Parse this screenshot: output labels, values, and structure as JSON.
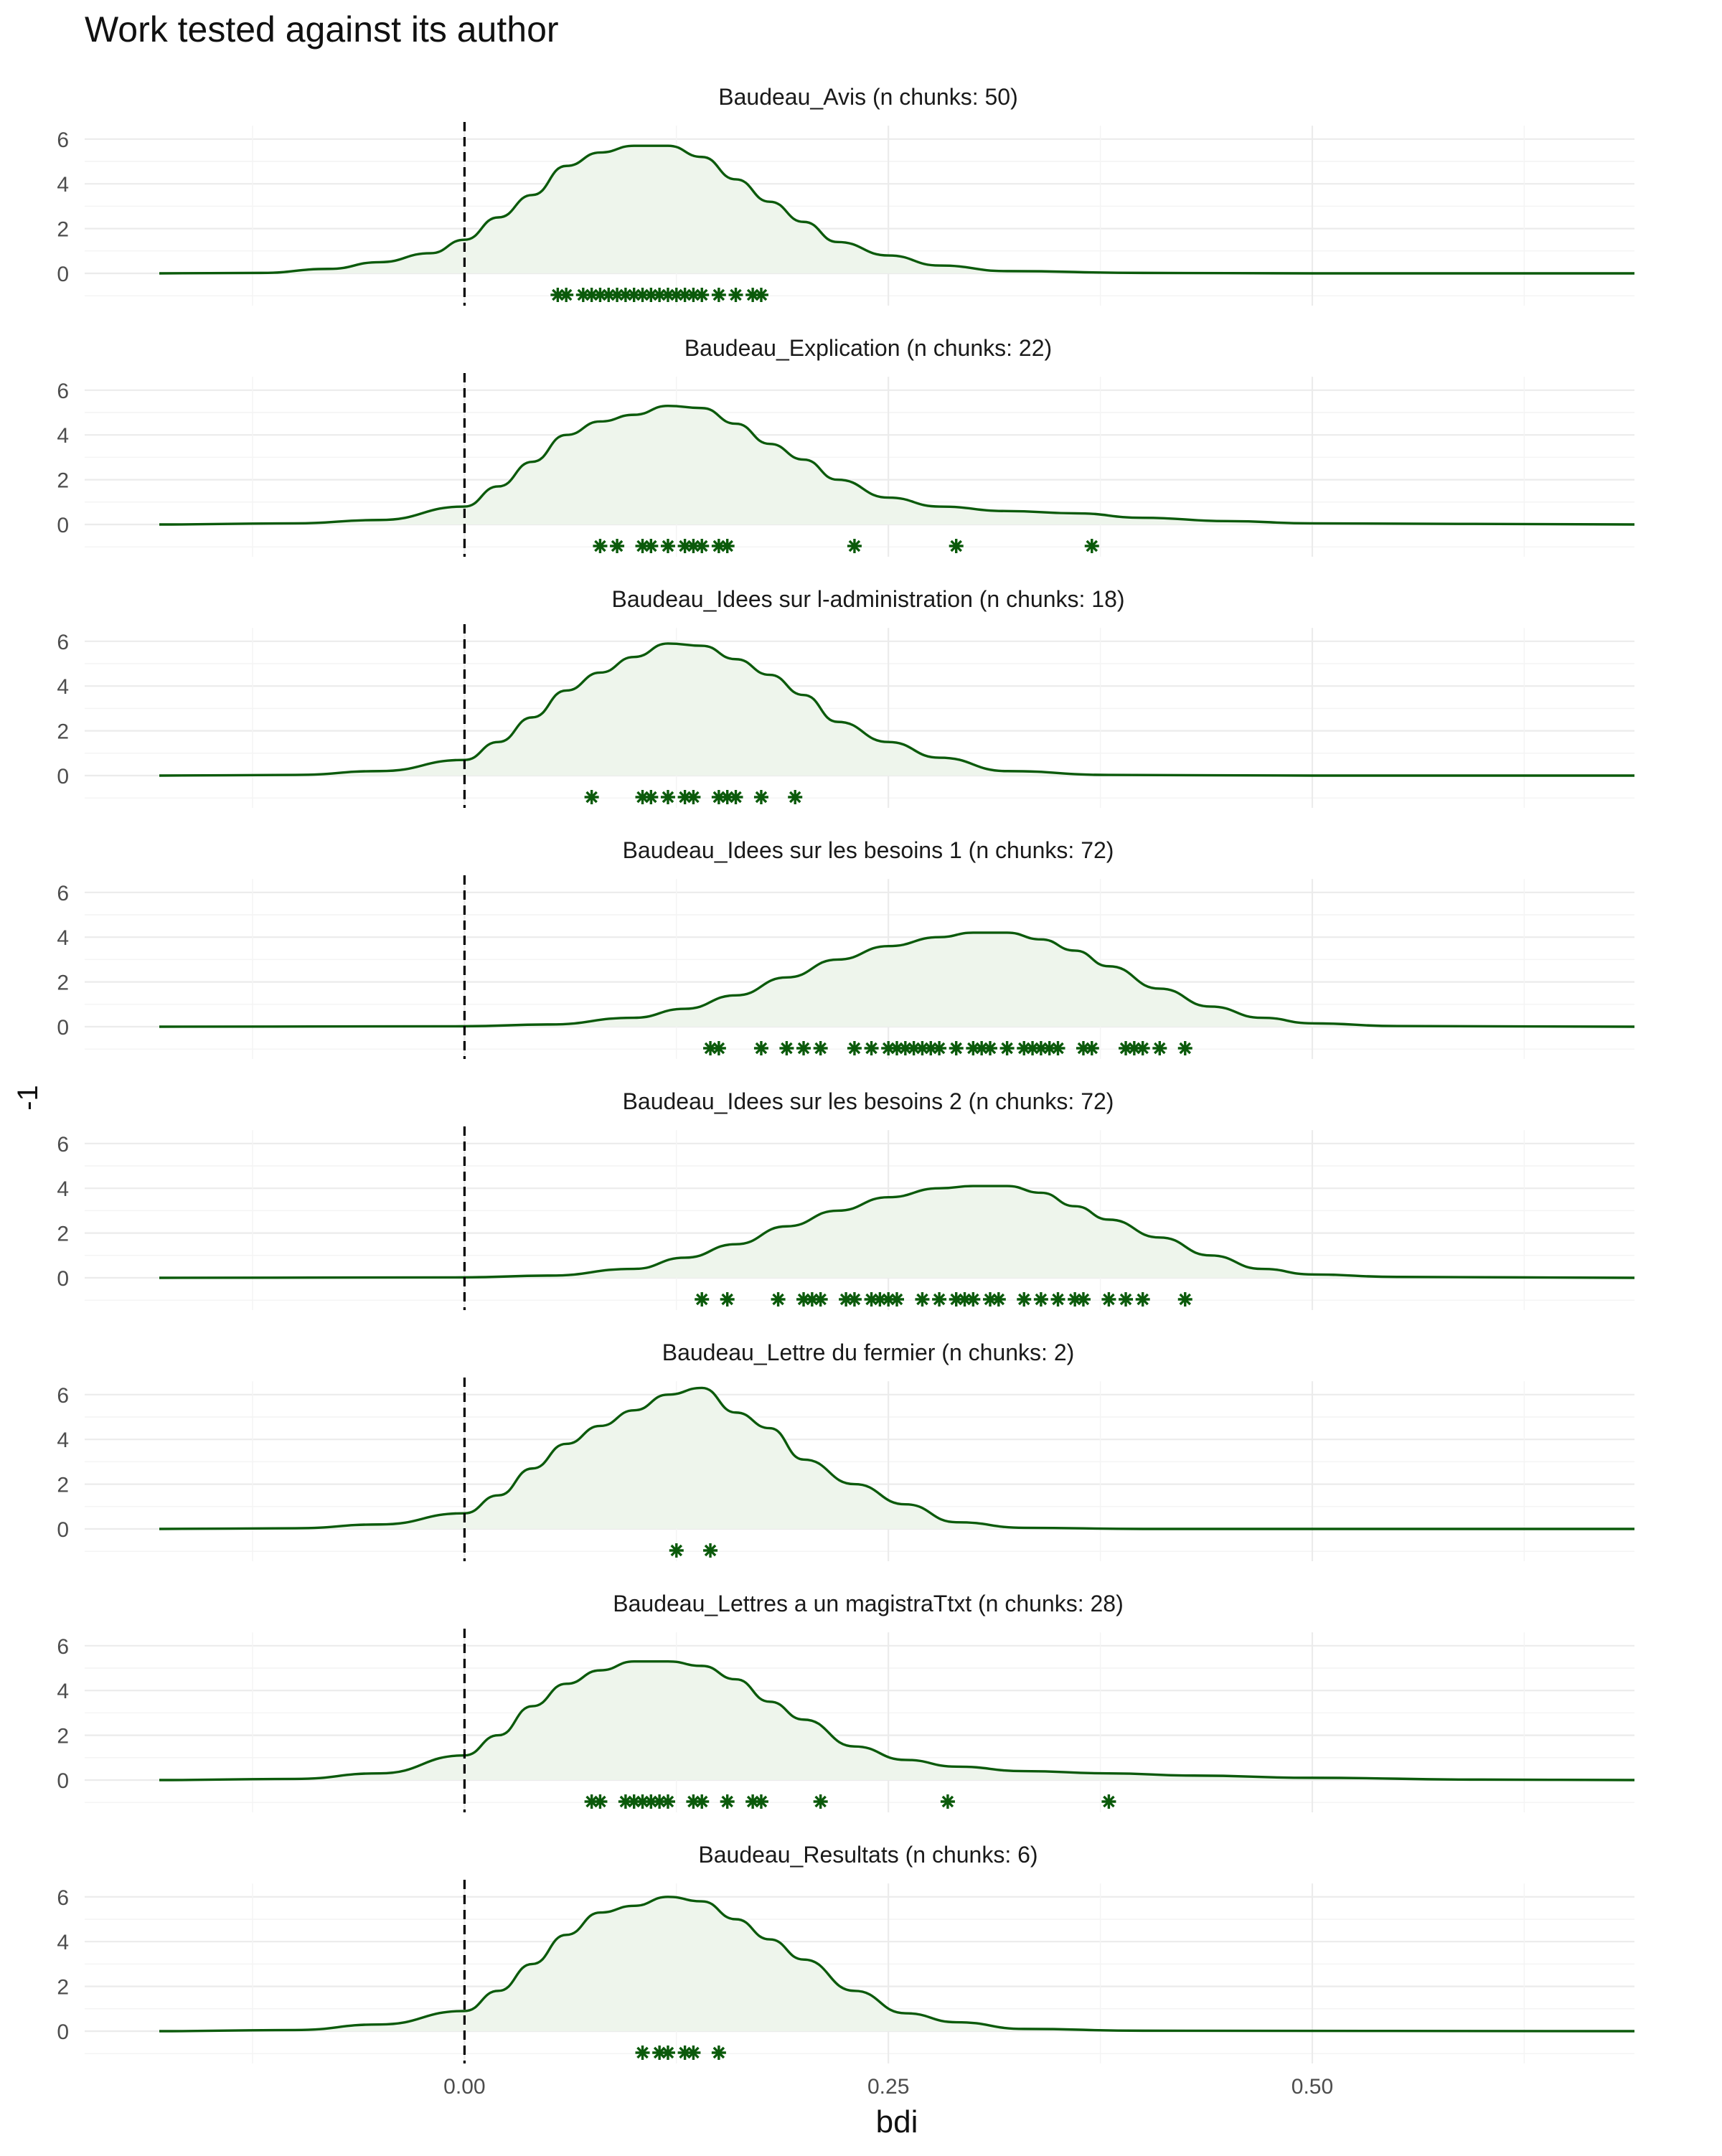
{
  "title": "Work tested against its author",
  "chart_data": {
    "type": "density",
    "title": "Work tested against its author",
    "xlabel": "bdi",
    "ylabel": "-1",
    "x_ticks": [
      0.0,
      0.25,
      0.5
    ],
    "x_tick_labels": [
      "0.00",
      "0.25",
      "0.50"
    ],
    "y_ticks": [
      0,
      2,
      4,
      6
    ],
    "y_tick_labels": [
      "0",
      "2",
      "4",
      "6"
    ],
    "reference_line_x": 0.0,
    "line_color": "#0b5a0b",
    "fill_color": "#eef5ec",
    "point_marker": "asterisk",
    "grid": true,
    "panels": [
      {
        "label": "Baudeau_Avis  (n chunks: 50)",
        "density": [
          [
            -0.18,
            0
          ],
          [
            -0.12,
            0.02
          ],
          [
            -0.08,
            0.2
          ],
          [
            -0.05,
            0.5
          ],
          [
            -0.02,
            0.9
          ],
          [
            0.0,
            1.5
          ],
          [
            0.02,
            2.5
          ],
          [
            0.04,
            3.5
          ],
          [
            0.06,
            4.8
          ],
          [
            0.08,
            5.4
          ],
          [
            0.1,
            5.7
          ],
          [
            0.12,
            5.7
          ],
          [
            0.14,
            5.2
          ],
          [
            0.16,
            4.2
          ],
          [
            0.18,
            3.2
          ],
          [
            0.2,
            2.3
          ],
          [
            0.22,
            1.4
          ],
          [
            0.25,
            0.8
          ],
          [
            0.28,
            0.35
          ],
          [
            0.32,
            0.1
          ],
          [
            0.4,
            0.02
          ],
          [
            0.5,
            0
          ],
          [
            0.69,
            0
          ]
        ],
        "points": [
          0.055,
          0.06,
          0.07,
          0.075,
          0.08,
          0.085,
          0.09,
          0.095,
          0.1,
          0.105,
          0.11,
          0.115,
          0.12,
          0.125,
          0.13,
          0.135,
          0.14,
          0.15,
          0.16,
          0.17,
          0.175
        ]
      },
      {
        "label": "Baudeau_Explication (n chunks: 22)",
        "density": [
          [
            -0.18,
            0
          ],
          [
            -0.1,
            0.05
          ],
          [
            -0.05,
            0.2
          ],
          [
            0.0,
            0.8
          ],
          [
            0.02,
            1.7
          ],
          [
            0.04,
            2.8
          ],
          [
            0.06,
            4.0
          ],
          [
            0.08,
            4.6
          ],
          [
            0.1,
            4.9
          ],
          [
            0.12,
            5.3
          ],
          [
            0.14,
            5.2
          ],
          [
            0.16,
            4.5
          ],
          [
            0.18,
            3.6
          ],
          [
            0.2,
            2.9
          ],
          [
            0.22,
            2.0
          ],
          [
            0.25,
            1.2
          ],
          [
            0.28,
            0.8
          ],
          [
            0.32,
            0.6
          ],
          [
            0.36,
            0.5
          ],
          [
            0.4,
            0.3
          ],
          [
            0.45,
            0.15
          ],
          [
            0.5,
            0.05
          ],
          [
            0.69,
            0
          ]
        ],
        "points": [
          0.08,
          0.09,
          0.105,
          0.11,
          0.12,
          0.13,
          0.135,
          0.14,
          0.15,
          0.155,
          0.23,
          0.29,
          0.37
        ]
      },
      {
        "label": "Baudeau_Idees sur l-administration (n chunks: 18)",
        "density": [
          [
            -0.18,
            0
          ],
          [
            -0.1,
            0.03
          ],
          [
            -0.05,
            0.2
          ],
          [
            0.0,
            0.7
          ],
          [
            0.02,
            1.5
          ],
          [
            0.04,
            2.6
          ],
          [
            0.06,
            3.8
          ],
          [
            0.08,
            4.6
          ],
          [
            0.1,
            5.3
          ],
          [
            0.12,
            5.9
          ],
          [
            0.14,
            5.8
          ],
          [
            0.16,
            5.2
          ],
          [
            0.18,
            4.5
          ],
          [
            0.2,
            3.6
          ],
          [
            0.22,
            2.4
          ],
          [
            0.25,
            1.5
          ],
          [
            0.28,
            0.8
          ],
          [
            0.32,
            0.2
          ],
          [
            0.38,
            0.03
          ],
          [
            0.5,
            0
          ],
          [
            0.69,
            0
          ]
        ],
        "points": [
          0.075,
          0.105,
          0.11,
          0.12,
          0.13,
          0.135,
          0.15,
          0.155,
          0.16,
          0.175,
          0.195
        ]
      },
      {
        "label": "Baudeau_Idees sur les besoins 1 (n chunks: 72)",
        "density": [
          [
            -0.18,
            0
          ],
          [
            0.0,
            0.02
          ],
          [
            0.05,
            0.1
          ],
          [
            0.1,
            0.4
          ],
          [
            0.13,
            0.8
          ],
          [
            0.16,
            1.4
          ],
          [
            0.19,
            2.2
          ],
          [
            0.22,
            3.0
          ],
          [
            0.25,
            3.6
          ],
          [
            0.28,
            4.0
          ],
          [
            0.3,
            4.2
          ],
          [
            0.32,
            4.2
          ],
          [
            0.34,
            3.9
          ],
          [
            0.36,
            3.4
          ],
          [
            0.38,
            2.7
          ],
          [
            0.41,
            1.7
          ],
          [
            0.44,
            0.9
          ],
          [
            0.47,
            0.4
          ],
          [
            0.5,
            0.15
          ],
          [
            0.55,
            0.03
          ],
          [
            0.69,
            0
          ]
        ],
        "points": [
          0.145,
          0.15,
          0.175,
          0.19,
          0.2,
          0.21,
          0.23,
          0.24,
          0.25,
          0.255,
          0.26,
          0.265,
          0.27,
          0.275,
          0.28,
          0.29,
          0.3,
          0.305,
          0.31,
          0.32,
          0.33,
          0.335,
          0.34,
          0.345,
          0.35,
          0.365,
          0.37,
          0.39,
          0.395,
          0.4,
          0.41,
          0.425
        ]
      },
      {
        "label": "Baudeau_Idees sur les besoins 2 (n chunks: 72)",
        "density": [
          [
            -0.18,
            0
          ],
          [
            0.0,
            0.02
          ],
          [
            0.05,
            0.1
          ],
          [
            0.1,
            0.4
          ],
          [
            0.13,
            0.9
          ],
          [
            0.16,
            1.5
          ],
          [
            0.19,
            2.3
          ],
          [
            0.22,
            3.0
          ],
          [
            0.25,
            3.6
          ],
          [
            0.28,
            4.0
          ],
          [
            0.3,
            4.1
          ],
          [
            0.32,
            4.1
          ],
          [
            0.34,
            3.8
          ],
          [
            0.36,
            3.2
          ],
          [
            0.38,
            2.6
          ],
          [
            0.41,
            1.8
          ],
          [
            0.44,
            1.0
          ],
          [
            0.47,
            0.4
          ],
          [
            0.5,
            0.15
          ],
          [
            0.55,
            0.04
          ],
          [
            0.69,
            0
          ]
        ],
        "points": [
          0.14,
          0.155,
          0.185,
          0.2,
          0.205,
          0.21,
          0.225,
          0.23,
          0.24,
          0.245,
          0.25,
          0.255,
          0.27,
          0.28,
          0.29,
          0.295,
          0.3,
          0.31,
          0.315,
          0.33,
          0.34,
          0.35,
          0.36,
          0.365,
          0.38,
          0.39,
          0.4,
          0.425
        ]
      },
      {
        "label": "Baudeau_Lettre du fermier (n chunks: 2)",
        "density": [
          [
            -0.18,
            0
          ],
          [
            -0.1,
            0.03
          ],
          [
            -0.05,
            0.2
          ],
          [
            0.0,
            0.7
          ],
          [
            0.02,
            1.5
          ],
          [
            0.04,
            2.7
          ],
          [
            0.06,
            3.8
          ],
          [
            0.08,
            4.6
          ],
          [
            0.1,
            5.3
          ],
          [
            0.12,
            6.0
          ],
          [
            0.14,
            6.3
          ],
          [
            0.16,
            5.2
          ],
          [
            0.18,
            4.5
          ],
          [
            0.2,
            3.1
          ],
          [
            0.23,
            2.0
          ],
          [
            0.26,
            1.1
          ],
          [
            0.29,
            0.3
          ],
          [
            0.33,
            0.05
          ],
          [
            0.4,
            0
          ],
          [
            0.69,
            0
          ]
        ],
        "points": [
          0.125,
          0.145
        ]
      },
      {
        "label": "Baudeau_Lettres  a un magistraTtxt (n chunks: 28)",
        "density": [
          [
            -0.18,
            0
          ],
          [
            -0.1,
            0.05
          ],
          [
            -0.05,
            0.3
          ],
          [
            0.0,
            1.1
          ],
          [
            0.02,
            2.0
          ],
          [
            0.04,
            3.3
          ],
          [
            0.06,
            4.3
          ],
          [
            0.08,
            4.9
          ],
          [
            0.1,
            5.3
          ],
          [
            0.12,
            5.3
          ],
          [
            0.14,
            5.1
          ],
          [
            0.16,
            4.5
          ],
          [
            0.18,
            3.5
          ],
          [
            0.2,
            2.7
          ],
          [
            0.23,
            1.5
          ],
          [
            0.26,
            0.9
          ],
          [
            0.29,
            0.6
          ],
          [
            0.33,
            0.4
          ],
          [
            0.38,
            0.3
          ],
          [
            0.43,
            0.2
          ],
          [
            0.5,
            0.1
          ],
          [
            0.6,
            0.02
          ],
          [
            0.69,
            0
          ]
        ],
        "points": [
          0.075,
          0.08,
          0.095,
          0.1,
          0.105,
          0.11,
          0.115,
          0.12,
          0.135,
          0.14,
          0.155,
          0.17,
          0.175,
          0.21,
          0.285,
          0.38
        ]
      },
      {
        "label": "Baudeau_Resultats (n chunks: 6)",
        "density": [
          [
            -0.18,
            0
          ],
          [
            -0.1,
            0.05
          ],
          [
            -0.05,
            0.3
          ],
          [
            0.0,
            0.9
          ],
          [
            0.02,
            1.8
          ],
          [
            0.04,
            3.0
          ],
          [
            0.06,
            4.3
          ],
          [
            0.08,
            5.3
          ],
          [
            0.1,
            5.6
          ],
          [
            0.12,
            6.0
          ],
          [
            0.14,
            5.8
          ],
          [
            0.16,
            5.0
          ],
          [
            0.18,
            4.1
          ],
          [
            0.2,
            3.2
          ],
          [
            0.23,
            1.8
          ],
          [
            0.26,
            0.8
          ],
          [
            0.29,
            0.4
          ],
          [
            0.33,
            0.1
          ],
          [
            0.4,
            0.02
          ],
          [
            0.69,
            0
          ]
        ],
        "points": [
          0.105,
          0.115,
          0.12,
          0.13,
          0.135,
          0.15
        ]
      }
    ]
  }
}
